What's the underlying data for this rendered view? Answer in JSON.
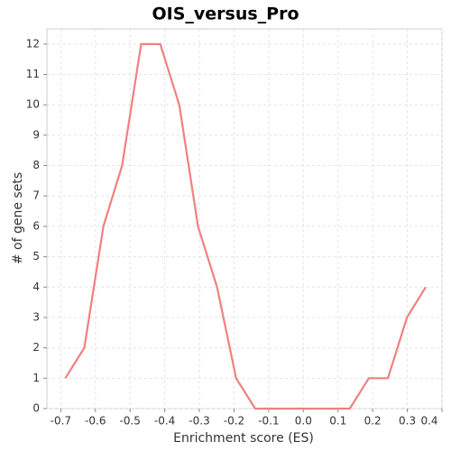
{
  "chart_data": {
    "type": "line",
    "title": "OIS_versus_Pro",
    "x_label": "Enrichment score (ES)",
    "y_label": "# of gene sets",
    "x": [
      -0.687,
      -0.632,
      -0.577,
      -0.523,
      -0.468,
      -0.413,
      -0.358,
      -0.304,
      -0.249,
      -0.194,
      -0.139,
      -0.085,
      -0.03,
      0.025,
      0.08,
      0.134,
      0.189,
      0.244,
      0.299,
      0.353
    ],
    "series": [
      {
        "color": "#f08080",
        "values": [
          1,
          2,
          6,
          8,
          12,
          12,
          10,
          6,
          4,
          1,
          0,
          0,
          0,
          0,
          0,
          0,
          1,
          1,
          3,
          4
        ]
      }
    ],
    "xlim": [
      -0.74,
      0.4
    ],
    "xticks": [
      -0.7,
      -0.6,
      -0.5,
      -0.4,
      -0.3,
      -0.2,
      -0.1,
      0.0,
      0.1,
      0.2,
      0.3,
      0.4
    ],
    "ylim": [
      0,
      12.5
    ],
    "yticks": [
      0,
      1,
      2,
      3,
      4,
      5,
      6,
      7,
      8,
      9,
      10,
      11,
      12
    ],
    "grid": true
  }
}
